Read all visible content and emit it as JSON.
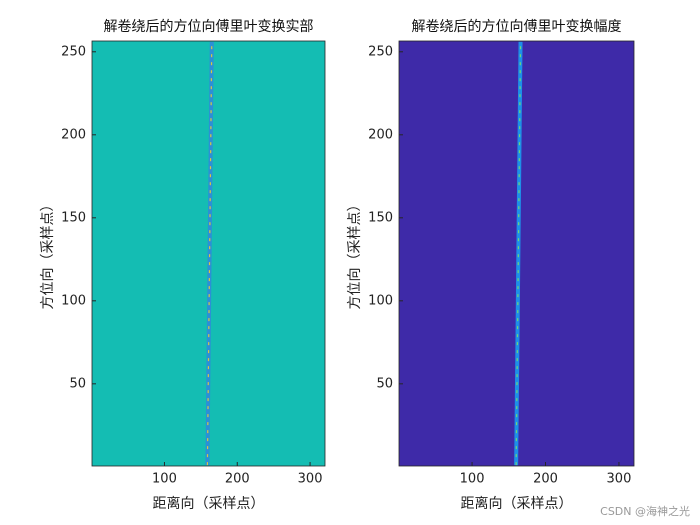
{
  "chart_data": [
    {
      "type": "image",
      "title": "解卷绕后的方位向傅里叶变换实部",
      "x_label": "距离向（采样点）",
      "y_label": "方位向（采样点）",
      "xlim": [
        0.5,
        320.5
      ],
      "ylim": [
        0.5,
        256.5
      ],
      "xticks": [
        100,
        200,
        300
      ],
      "yticks": [
        50,
        100,
        150,
        200,
        250
      ],
      "background": "#14bdb3",
      "ridge_color": "#2c8fd6",
      "ridge_accent": "#d8c840",
      "ridge_x": [
        159,
        161,
        163,
        165
      ],
      "ridge_y": [
        1,
        85,
        170,
        256
      ]
    },
    {
      "type": "image",
      "title": "解卷绕后的方位向傅里叶变换幅度",
      "x_label": "距离向（采样点）",
      "y_label": "方位向（采样点）",
      "xlim": [
        0.5,
        320.5
      ],
      "ylim": [
        0.5,
        256.5
      ],
      "xticks": [
        100,
        200,
        300
      ],
      "yticks": [
        50,
        100,
        150,
        200,
        250
      ],
      "background": "#3e2aa8",
      "ridge_color": "#1e8fe8",
      "ridge_accent": "#6fd47a",
      "ridge_x": [
        160,
        162,
        164,
        166
      ],
      "ridge_y": [
        1,
        85,
        170,
        256
      ]
    }
  ],
  "watermark": "CSDN @海神之光"
}
